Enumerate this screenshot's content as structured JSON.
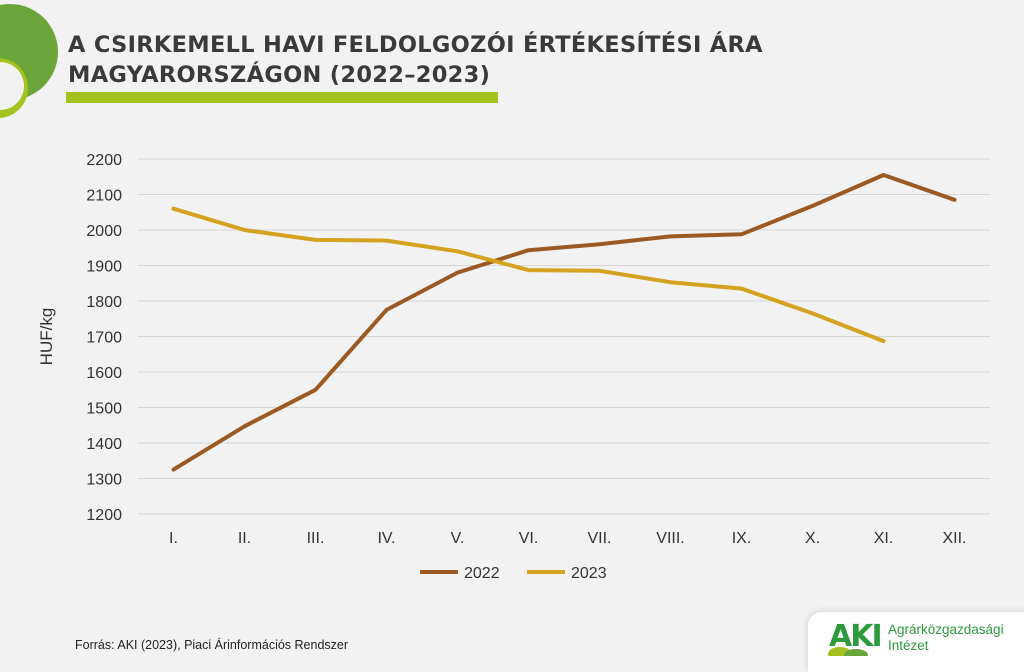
{
  "header": {
    "title_line1": "A CSIRKEMELL HAVI FELDOLGOZÓI ÉRTÉKESÍTÉSI ÁRA",
    "title_line2": "MAGYARORSZÁGON (2022–2023)"
  },
  "source": "Forrás: AKI (2023), Piaci Árinformációs Rendszer",
  "logo": {
    "mark": "AKI",
    "line1": "Agrárközgazdasági",
    "line2": "Intézet",
    "color": "#2e9a3e"
  },
  "colors": {
    "accent_green": "#6aa53a",
    "accent_lime": "#a4c21e"
  },
  "chart_data": {
    "type": "line",
    "title": "A CSIRKEMELL HAVI FELDOLGOZÓI ÉRTÉKESÍTÉSI ÁRA MAGYARORSZÁGON (2022–2023)",
    "xlabel": "",
    "ylabel": "HUF/kg",
    "categories": [
      "I.",
      "II.",
      "III.",
      "IV.",
      "V.",
      "VI.",
      "VII.",
      "VIII.",
      "IX.",
      "X.",
      "XI.",
      "XII."
    ],
    "ylim": [
      1200,
      2200
    ],
    "yticks": [
      1200,
      1300,
      1400,
      1500,
      1600,
      1700,
      1800,
      1900,
      2000,
      2100,
      2200
    ],
    "grid": true,
    "legend": "bottom",
    "series": [
      {
        "name": "2022",
        "color": "#9c5a22",
        "values": [
          1325,
          1447,
          1550,
          1775,
          1880,
          1943,
          1960,
          1982,
          1988,
          2068,
          2155,
          2085
        ]
      },
      {
        "name": "2023",
        "color": "#d4a21e",
        "values": [
          2060,
          2000,
          1972,
          1970,
          1940,
          1887,
          1885,
          1853,
          1835,
          1765,
          1687,
          null
        ]
      }
    ]
  }
}
